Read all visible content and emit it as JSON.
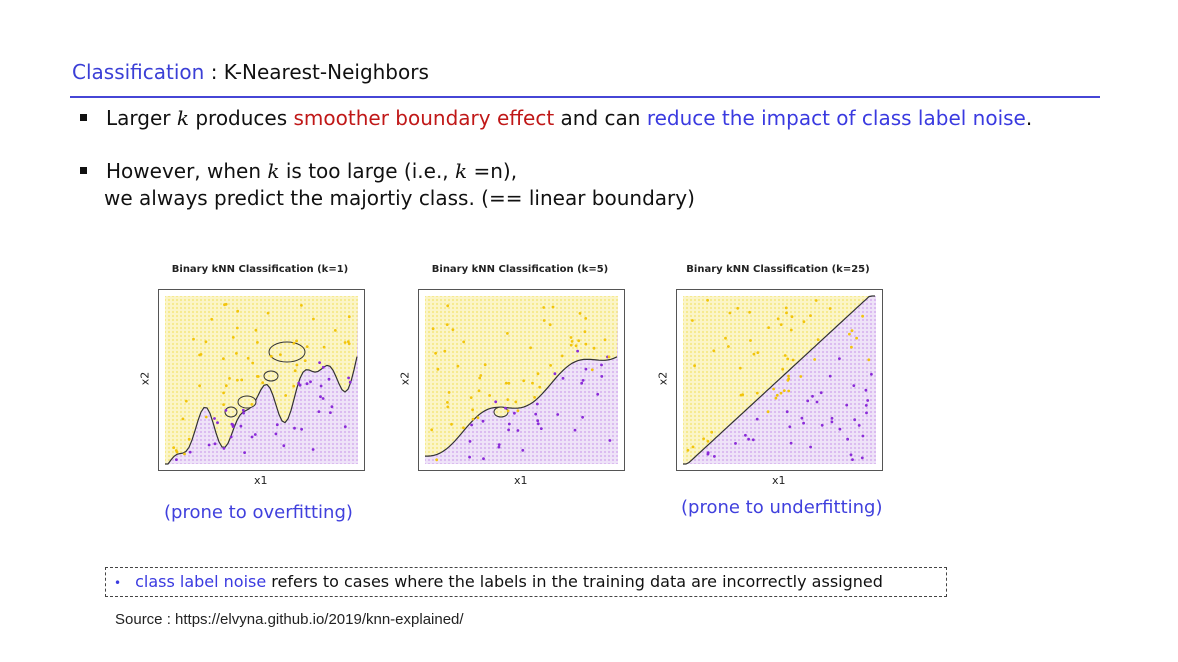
{
  "header": {
    "title_accent": "Classification",
    "title_sep": " : ",
    "title_rest": "K-Nearest-Neighbors"
  },
  "bullets": [
    {
      "part1": "Larger ",
      "k": "k",
      "part2": " produces ",
      "red": "smoother boundary effect",
      "part3": " and can ",
      "blue": "reduce the impact of class label noise",
      "part4": "."
    },
    {
      "part1": "However, when  ",
      "k": "k",
      "part2": " is too large (i.e., ",
      "k2": "k",
      "part3": " =n),",
      "line2": "we always predict the majortiy class. (== linear boundary)"
    }
  ],
  "panels": [
    {
      "title": "Binary kNN Classification (k=1)",
      "xlabel": "x1",
      "ylabel": "x2"
    },
    {
      "title": "Binary kNN Classification (k=5)",
      "xlabel": "x1",
      "ylabel": "x2"
    },
    {
      "title": "Binary kNN Classification (k=25)",
      "xlabel": "x1",
      "ylabel": "x2"
    }
  ],
  "captions": {
    "overfit": "(prone to overfitting)",
    "underfit": "(prone to underfitting)"
  },
  "note": {
    "term": "class label noise",
    "rest": " refers to cases where the labels in the training data are incorrectly assigned"
  },
  "source": "Source : https://elvyna.github.io/2019/knn-explained/",
  "colors": {
    "accent_blue": "#3b3fd6",
    "highlight_red": "#c01818",
    "class_yellow": "#f6e98a",
    "class_purple": "#d9b8ef",
    "point_yellow": "#f2c40c",
    "point_purple": "#8a2bd8"
  }
}
